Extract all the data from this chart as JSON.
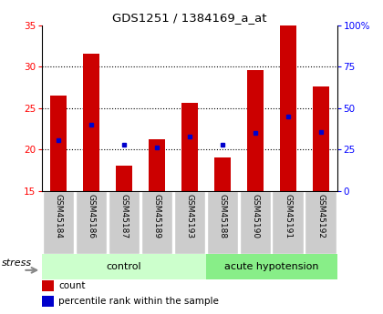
{
  "title": "GDS1251 / 1384169_a_at",
  "samples": [
    "GSM45184",
    "GSM45186",
    "GSM45187",
    "GSM45189",
    "GSM45193",
    "GSM45188",
    "GSM45190",
    "GSM45191",
    "GSM45192"
  ],
  "groups": [
    "control",
    "control",
    "control",
    "control",
    "control",
    "acute hypotension",
    "acute hypotension",
    "acute hypotension",
    "acute hypotension"
  ],
  "count_values": [
    26.5,
    31.5,
    18.0,
    21.2,
    25.6,
    19.0,
    29.6,
    35.0,
    27.6
  ],
  "percentile_values": [
    21.1,
    23.0,
    20.5,
    20.2,
    21.5,
    20.5,
    22.0,
    24.0,
    22.1
  ],
  "y_min": 15,
  "y_max": 35,
  "y_ticks_left": [
    15,
    20,
    25,
    30,
    35
  ],
  "y_ticks_right": [
    0,
    25,
    50,
    75,
    100
  ],
  "bar_color": "#cc0000",
  "dot_color": "#0000cc",
  "control_bg": "#ccffcc",
  "hypotension_bg": "#88ee88",
  "sample_bg": "#cccccc",
  "stress_label": "stress",
  "control_label": "control",
  "hypotension_label": "acute hypotension",
  "legend_count": "count",
  "legend_percentile": "percentile rank within the sample",
  "control_count": 5,
  "hyp_count": 4
}
